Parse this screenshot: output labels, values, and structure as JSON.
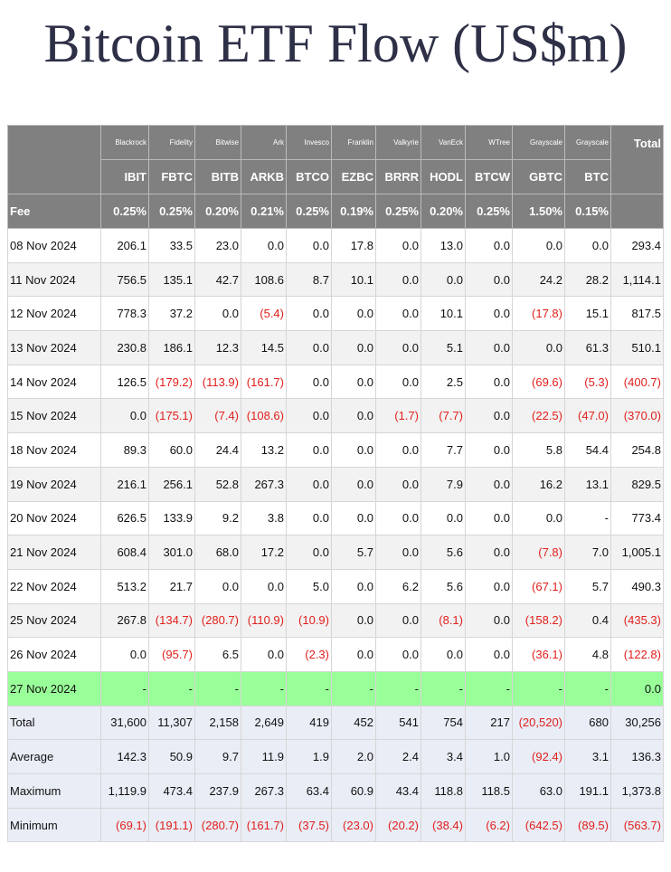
{
  "title": "Bitcoin ETF Flow (US$m)",
  "header": {
    "issuers": [
      "Blackrock",
      "Fidelity",
      "Bitwise",
      "Ark",
      "Invesco",
      "Franklin",
      "Valkyrie",
      "VanEck",
      "WTree",
      "Grayscale",
      "Grayscale"
    ],
    "total": "Total",
    "tickers": [
      "IBIT",
      "FBTC",
      "BITB",
      "ARKB",
      "BTCO",
      "EZBC",
      "BRRR",
      "HODL",
      "BTCW",
      "GBTC",
      "BTC"
    ],
    "fee_label": "Fee",
    "fees": [
      "0.25%",
      "0.25%",
      "0.20%",
      "0.21%",
      "0.25%",
      "0.19%",
      "0.25%",
      "0.20%",
      "0.25%",
      "1.50%",
      "0.15%"
    ]
  },
  "rows": [
    {
      "label": "08 Nov 2024",
      "cells": [
        "206.1",
        "33.5",
        "23.0",
        "0.0",
        "0.0",
        "17.8",
        "0.0",
        "13.0",
        "0.0",
        "0.0",
        "0.0",
        "293.4"
      ]
    },
    {
      "label": "11 Nov 2024",
      "cells": [
        "756.5",
        "135.1",
        "42.7",
        "108.6",
        "8.7",
        "10.1",
        "0.0",
        "0.0",
        "0.0",
        "24.2",
        "28.2",
        "1,114.1"
      ]
    },
    {
      "label": "12 Nov 2024",
      "cells": [
        "778.3",
        "37.2",
        "0.0",
        "(5.4)",
        "0.0",
        "0.0",
        "0.0",
        "10.1",
        "0.0",
        "(17.8)",
        "15.1",
        "817.5"
      ]
    },
    {
      "label": "13 Nov 2024",
      "cells": [
        "230.8",
        "186.1",
        "12.3",
        "14.5",
        "0.0",
        "0.0",
        "0.0",
        "5.1",
        "0.0",
        "0.0",
        "61.3",
        "510.1"
      ]
    },
    {
      "label": "14 Nov 2024",
      "cells": [
        "126.5",
        "(179.2)",
        "(113.9)",
        "(161.7)",
        "0.0",
        "0.0",
        "0.0",
        "2.5",
        "0.0",
        "(69.6)",
        "(5.3)",
        "(400.7)"
      ]
    },
    {
      "label": "15 Nov 2024",
      "cells": [
        "0.0",
        "(175.1)",
        "(7.4)",
        "(108.6)",
        "0.0",
        "0.0",
        "(1.7)",
        "(7.7)",
        "0.0",
        "(22.5)",
        "(47.0)",
        "(370.0)"
      ]
    },
    {
      "label": "18 Nov 2024",
      "cells": [
        "89.3",
        "60.0",
        "24.4",
        "13.2",
        "0.0",
        "0.0",
        "0.0",
        "7.7",
        "0.0",
        "5.8",
        "54.4",
        "254.8"
      ]
    },
    {
      "label": "19 Nov 2024",
      "cells": [
        "216.1",
        "256.1",
        "52.8",
        "267.3",
        "0.0",
        "0.0",
        "0.0",
        "7.9",
        "0.0",
        "16.2",
        "13.1",
        "829.5"
      ]
    },
    {
      "label": "20 Nov 2024",
      "cells": [
        "626.5",
        "133.9",
        "9.2",
        "3.8",
        "0.0",
        "0.0",
        "0.0",
        "0.0",
        "0.0",
        "0.0",
        "-",
        "773.4"
      ]
    },
    {
      "label": "21 Nov 2024",
      "cells": [
        "608.4",
        "301.0",
        "68.0",
        "17.2",
        "0.0",
        "5.7",
        "0.0",
        "5.6",
        "0.0",
        "(7.8)",
        "7.0",
        "1,005.1"
      ]
    },
    {
      "label": "22 Nov 2024",
      "cells": [
        "513.2",
        "21.7",
        "0.0",
        "0.0",
        "5.0",
        "0.0",
        "6.2",
        "5.6",
        "0.0",
        "(67.1)",
        "5.7",
        "490.3"
      ]
    },
    {
      "label": "25 Nov 2024",
      "cells": [
        "267.8",
        "(134.7)",
        "(280.7)",
        "(110.9)",
        "(10.9)",
        "0.0",
        "0.0",
        "(8.1)",
        "0.0",
        "(158.2)",
        "0.4",
        "(435.3)"
      ]
    },
    {
      "label": "26 Nov 2024",
      "cells": [
        "0.0",
        "(95.7)",
        "6.5",
        "0.0",
        "(2.3)",
        "0.0",
        "0.0",
        "0.0",
        "0.0",
        "(36.1)",
        "4.8",
        "(122.8)"
      ]
    },
    {
      "label": "27 Nov 2024",
      "cells": [
        "-",
        "-",
        "-",
        "-",
        "-",
        "-",
        "-",
        "-",
        "-",
        "-",
        "-",
        "0.0"
      ]
    }
  ],
  "summary": [
    {
      "label": "Total",
      "cells": [
        "31,600",
        "11,307",
        "2,158",
        "2,649",
        "419",
        "452",
        "541",
        "754",
        "217",
        "(20,520)",
        "680",
        "30,256"
      ]
    },
    {
      "label": "Average",
      "cells": [
        "142.3",
        "50.9",
        "9.7",
        "11.9",
        "1.9",
        "2.0",
        "2.4",
        "3.4",
        "1.0",
        "(92.4)",
        "3.1",
        "136.3"
      ]
    },
    {
      "label": "Maximum",
      "cells": [
        "1,119.9",
        "473.4",
        "237.9",
        "267.3",
        "63.4",
        "60.9",
        "43.4",
        "118.8",
        "118.5",
        "63.0",
        "191.1",
        "1,373.8"
      ]
    },
    {
      "label": "Minimum",
      "cells": [
        "(69.1)",
        "(191.1)",
        "(280.7)",
        "(161.7)",
        "(37.5)",
        "(23.0)",
        "(20.2)",
        "(38.4)",
        "(6.2)",
        "(642.5)",
        "(89.5)",
        "(563.7)"
      ]
    }
  ]
}
